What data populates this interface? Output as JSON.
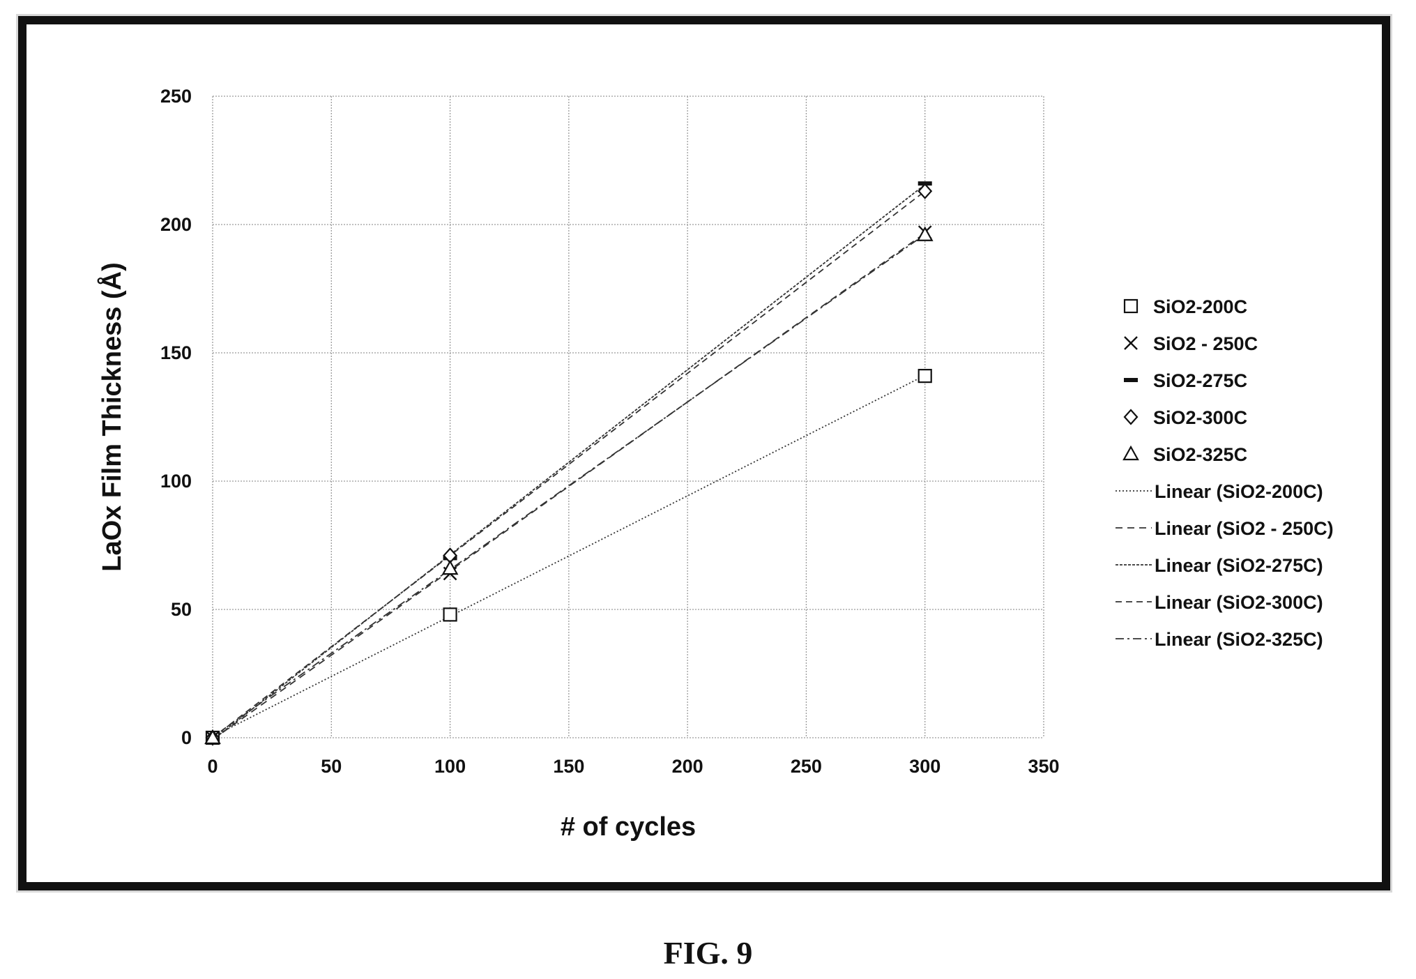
{
  "figure": {
    "caption": "FIG. 9"
  },
  "chart_data": {
    "type": "scatter",
    "xlabel": "# of cycles",
    "ylabel": "LaOx Film Thickness (Å)",
    "xlim": [
      0,
      350
    ],
    "ylim": [
      0,
      250
    ],
    "xticks": [
      0,
      50,
      100,
      150,
      200,
      250,
      300,
      350
    ],
    "yticks": [
      0,
      50,
      100,
      150,
      200,
      250
    ],
    "grid": true,
    "legend_position": "right",
    "series": [
      {
        "name": "SiO2-200C",
        "marker": "square",
        "x": [
          0,
          100,
          300
        ],
        "y": [
          0,
          48,
          141
        ]
      },
      {
        "name": "SiO2 - 250C",
        "marker": "x",
        "x": [
          0,
          100,
          300
        ],
        "y": [
          0,
          64,
          197
        ]
      },
      {
        "name": "SiO2-275C",
        "marker": "dash",
        "x": [
          0,
          100,
          300
        ],
        "y": [
          0,
          70,
          216
        ]
      },
      {
        "name": "SiO2-300C",
        "marker": "diamond",
        "x": [
          0,
          100,
          300
        ],
        "y": [
          0,
          71,
          213
        ]
      },
      {
        "name": "SiO2-325C",
        "marker": "triangle",
        "x": [
          0,
          100,
          300
        ],
        "y": [
          0,
          66,
          196
        ]
      }
    ],
    "trendlines": [
      {
        "name": "Linear (SiO2-200C)",
        "series": 0,
        "dash": "2,3"
      },
      {
        "name": "Linear (SiO2 - 250C)",
        "series": 1,
        "dash": "10,7"
      },
      {
        "name": "Linear (SiO2-275C)",
        "series": 2,
        "dash": "4,2"
      },
      {
        "name": "Linear (SiO2-300C)",
        "series": 3,
        "dash": "9,6"
      },
      {
        "name": "Linear (SiO2-325C)",
        "series": 4,
        "dash": "12,5,3,5"
      }
    ]
  }
}
